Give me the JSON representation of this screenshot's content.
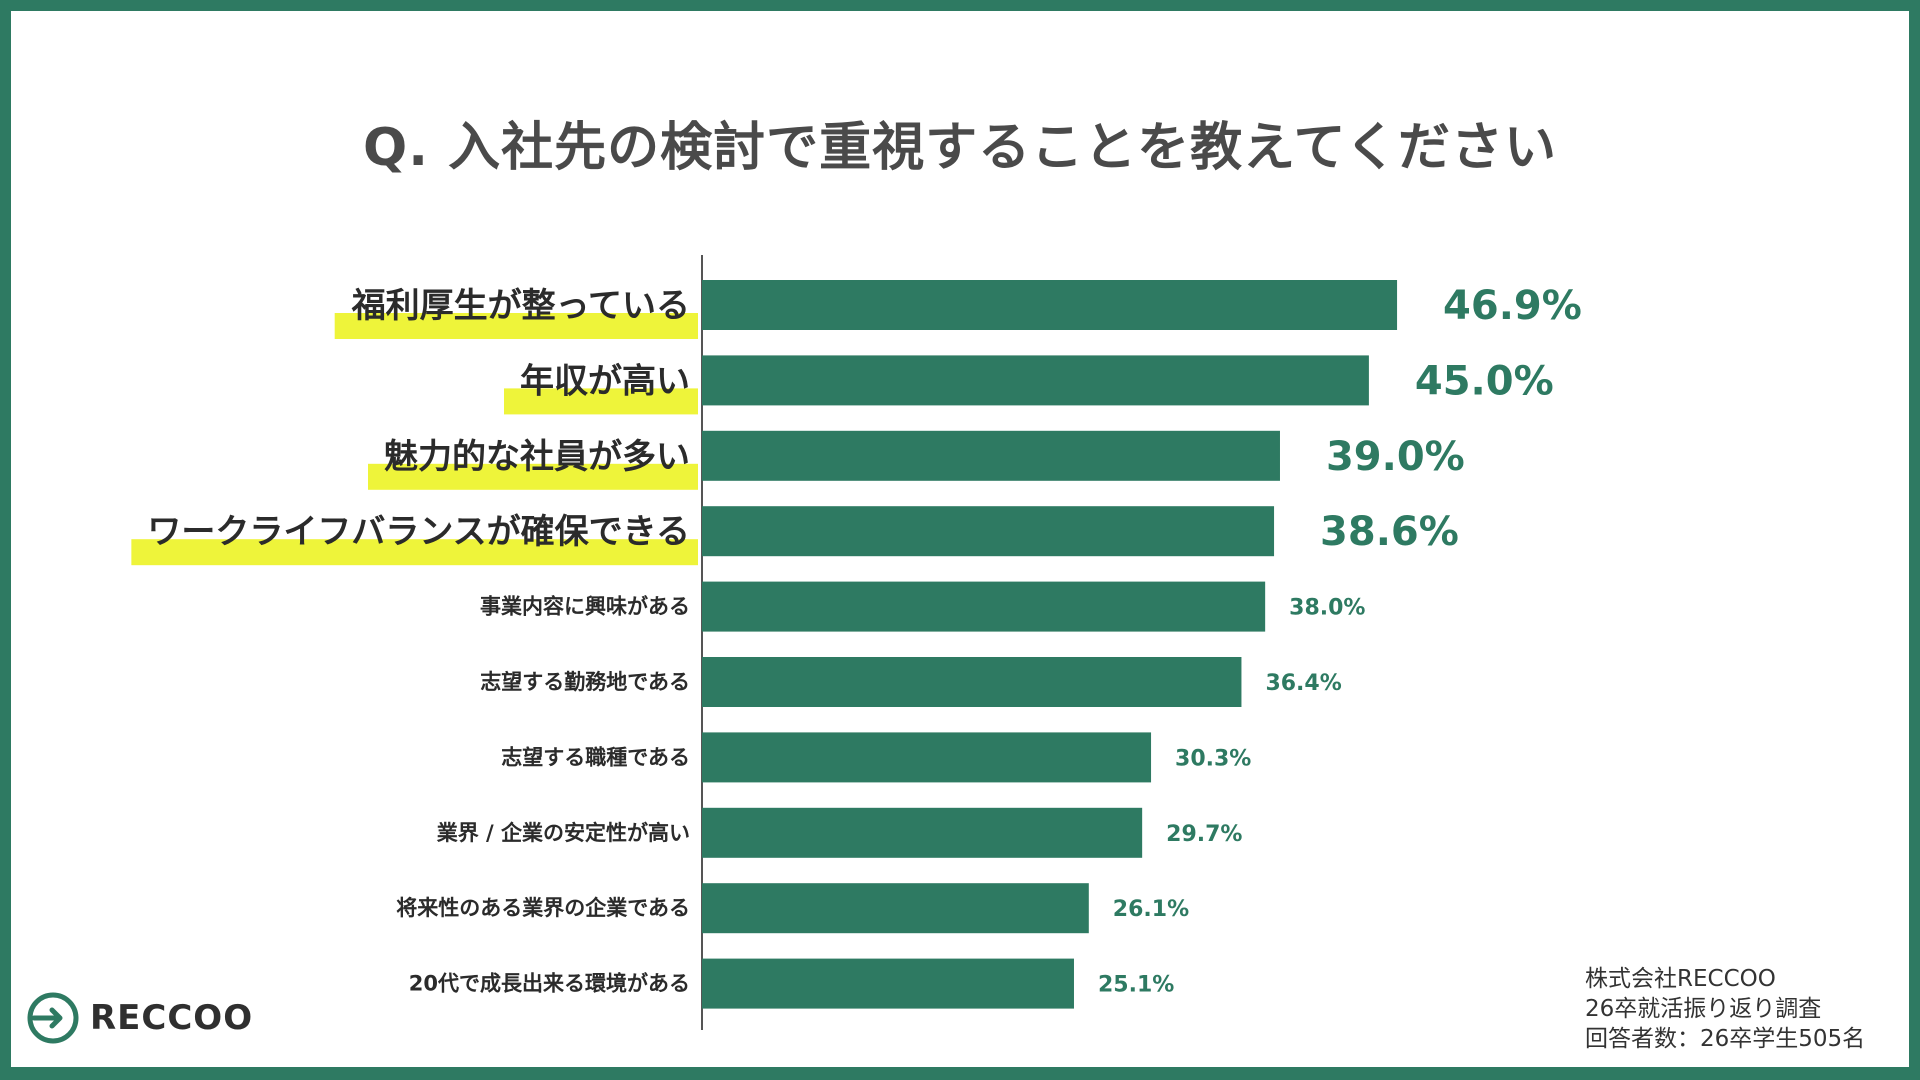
{
  "title": "Q. 入社先の検討で重視することを教えてください",
  "brand": {
    "name": "RECCOO",
    "icon": "reccoo-logo-icon"
  },
  "source": {
    "line1": "株式会社RECCOO",
    "line2": "26卒就活振り返り調査",
    "line3": "回答者数：26卒学生505名"
  },
  "colors": {
    "bar": "#2e7a62",
    "value_text": "#2e7a62",
    "highlight": "#eef43a",
    "frame": "#2e7a62",
    "title": "#4a4a4a"
  },
  "chart_data": {
    "type": "bar",
    "orientation": "horizontal",
    "highlighted_top": 4,
    "categories": [
      "福利厚生が整っている",
      "年収が高い",
      "魅力的な社員が多い",
      "ワークライフバランスが確保できる",
      "事業内容に興味がある",
      "志望する勤務地である",
      "志望する職種である",
      "業界 / 企業の安定性が高い",
      "将来性のある業界の企業である",
      "20代で成長出来る環境がある"
    ],
    "values": [
      46.9,
      45.0,
      39.0,
      38.6,
      38.0,
      36.4,
      30.3,
      29.7,
      26.1,
      25.1
    ],
    "value_labels": [
      "46.9%",
      "45.0%",
      "39.0%",
      "38.6%",
      "38.0%",
      "36.4%",
      "30.3%",
      "29.7%",
      "26.1%",
      "25.1%"
    ],
    "xlim": [
      0,
      100
    ],
    "grid": false,
    "legend": "none"
  }
}
